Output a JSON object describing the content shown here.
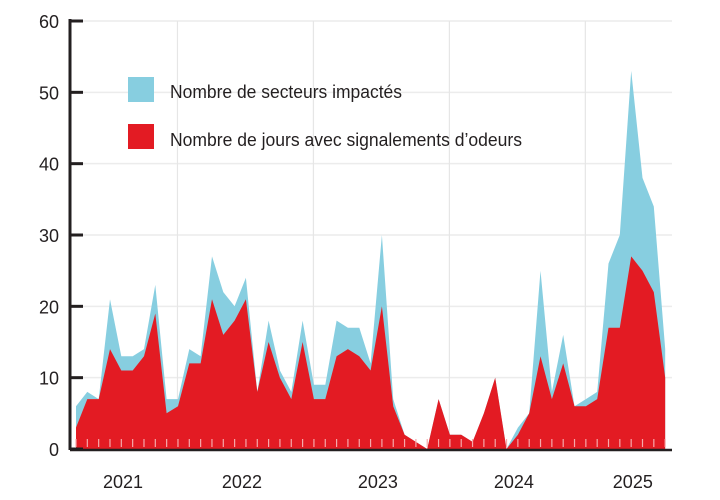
{
  "chart_data": {
    "type": "area",
    "title": "",
    "xlabel": "",
    "ylabel": "",
    "ylim": [
      0,
      60
    ],
    "yticks": [
      0,
      10,
      20,
      30,
      40,
      50,
      60
    ],
    "grid": true,
    "legend_position": "top-left",
    "start_month": "2021-04",
    "year_labels": [
      {
        "label": "2021",
        "start_index": 0,
        "jan_index": -3
      },
      {
        "label": "2022",
        "start_index": 9,
        "jan_index": 9
      },
      {
        "label": "2023",
        "start_index": 21,
        "jan_index": 21
      },
      {
        "label": "2024",
        "start_index": 33,
        "jan_index": 33
      },
      {
        "label": "2025",
        "start_index": 45,
        "jan_index": 45
      }
    ],
    "series": [
      {
        "name": "Nombre de secteurs impactés",
        "color": "#87cee0",
        "values": [
          6,
          8,
          7,
          21,
          13,
          13,
          14,
          23,
          7,
          7,
          14,
          13,
          27,
          22,
          20,
          24,
          8,
          18,
          11,
          8,
          18,
          9,
          9,
          18,
          17,
          17,
          12,
          30,
          7,
          2,
          1,
          0,
          7,
          2,
          2,
          1,
          5,
          10,
          0,
          3,
          5,
          25,
          8,
          16,
          6,
          7,
          8,
          26,
          30,
          53,
          38,
          34,
          14
        ]
      },
      {
        "name": "Nombre de jours avec signalements d’odeurs",
        "color": "#e31b23",
        "values": [
          3,
          7,
          7,
          14,
          11,
          11,
          13,
          19,
          5,
          6,
          12,
          12,
          21,
          16,
          18,
          21,
          8,
          15,
          10,
          7,
          15,
          7,
          7,
          13,
          14,
          13,
          11,
          20,
          6,
          2,
          1,
          0,
          7,
          2,
          2,
          1,
          5,
          10,
          0,
          2,
          5,
          13,
          7,
          12,
          6,
          6,
          7,
          17,
          17,
          27,
          25,
          22,
          10
        ]
      }
    ]
  }
}
